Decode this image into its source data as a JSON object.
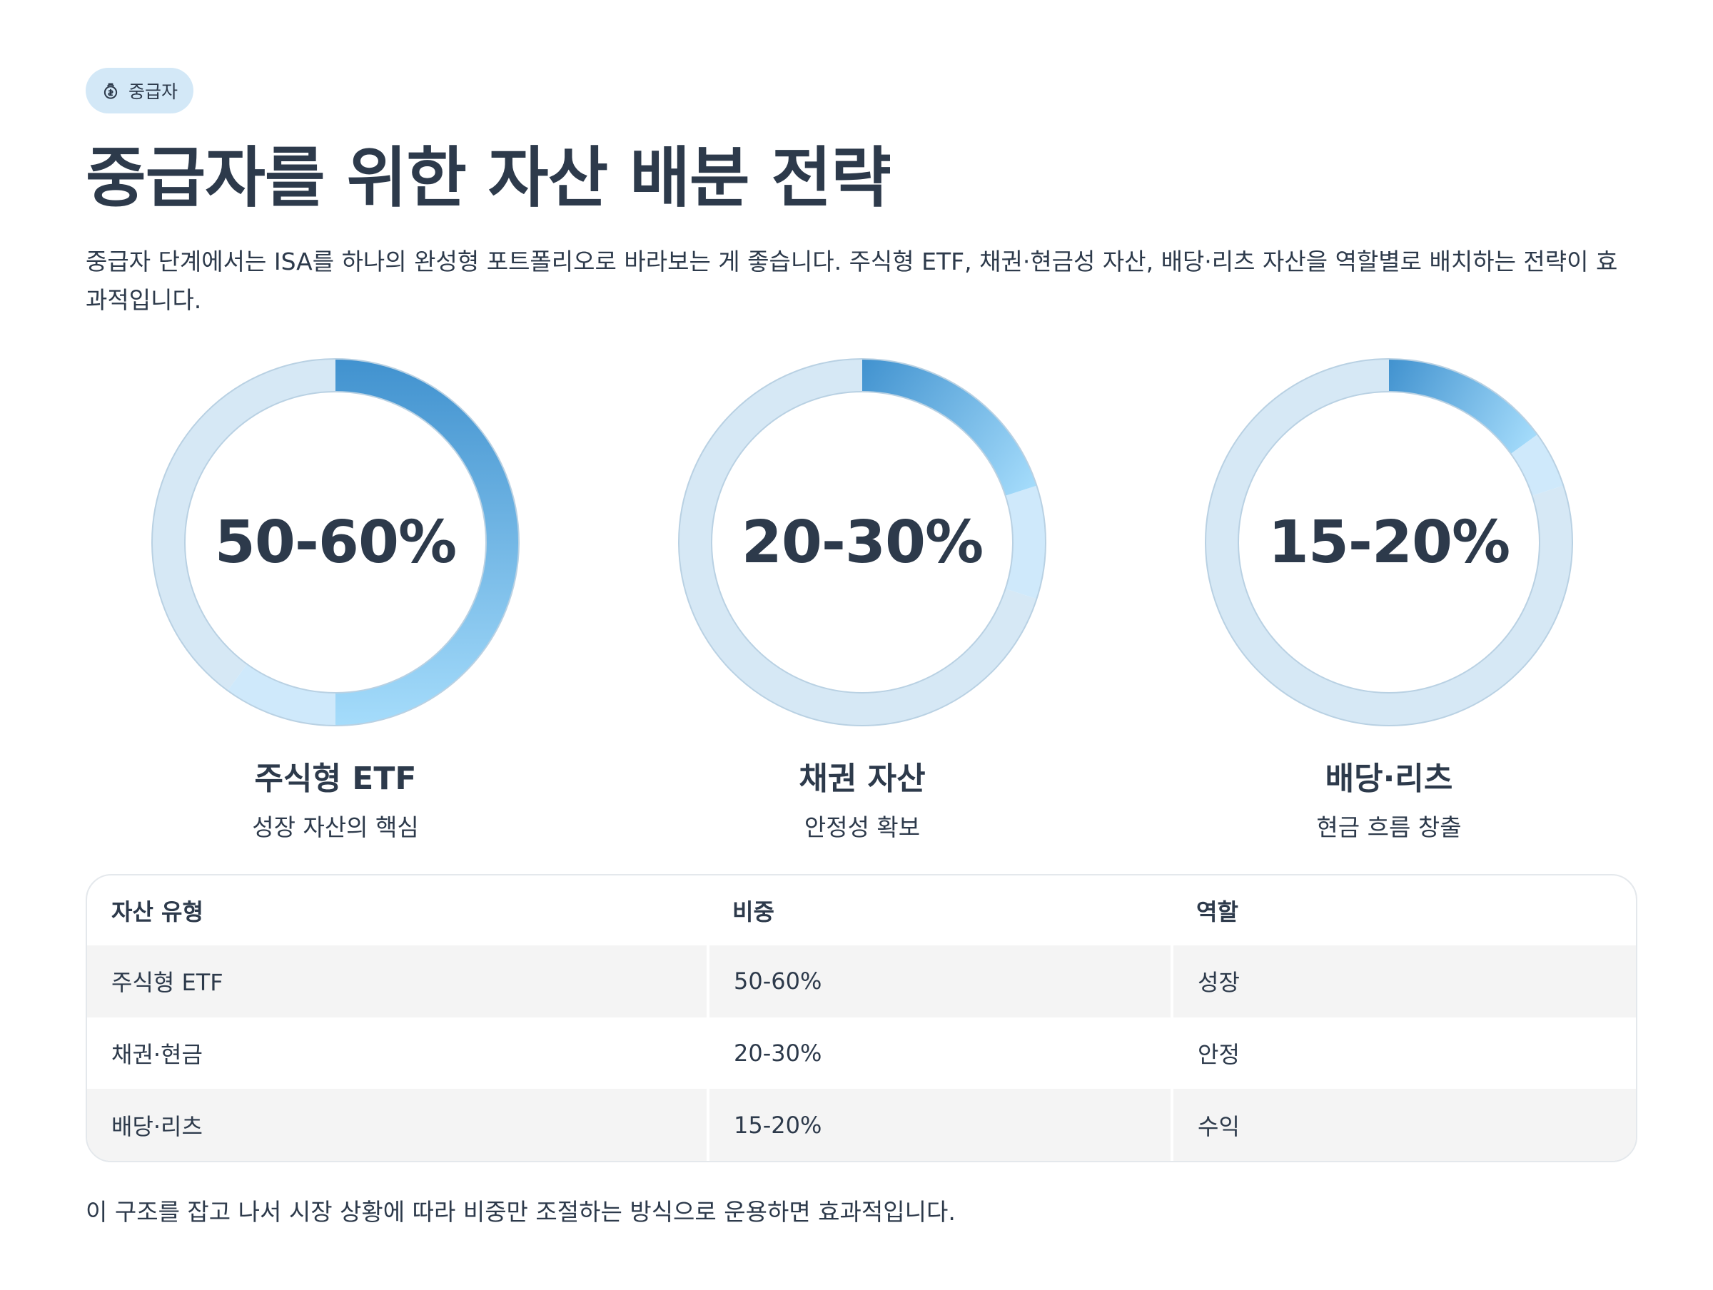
{
  "badge": {
    "icon": "piggy-bank-icon",
    "label": "중급자"
  },
  "title": "중급자를 위한 자산 배분 전략",
  "intro": "중급자 단계에서는 ISA를 하나의 완성형 포트폴리오로 바라보는 게 좋습니다. 주식형 ETF, 채권·현금성 자산, 배당·리츠 자산을 역할별로 배치하는 전략이 효과적입니다.",
  "colors": {
    "text": "#2d3a4b",
    "ring_background": "#d6e8f5",
    "ring_upper_range": "#cfe9fb",
    "arc_start": "#4192cf",
    "arc_end": "#a5dcfb"
  },
  "chart_data": [
    {
      "type": "pie",
      "label": "50-60%",
      "range": [
        50,
        60
      ],
      "title": "주식형 ETF",
      "subtitle": "성장 자산의 핵심"
    },
    {
      "type": "pie",
      "label": "20-30%",
      "range": [
        20,
        30
      ],
      "title": "채권 자산",
      "subtitle": "안정성 확보"
    },
    {
      "type": "pie",
      "label": "15-20%",
      "range": [
        15,
        20
      ],
      "title": "배당·리츠",
      "subtitle": "현금 흐름 창출"
    }
  ],
  "table": {
    "headers": [
      "자산 유형",
      "비중",
      "역할"
    ],
    "rows": [
      [
        "주식형 ETF",
        "50-60%",
        "성장"
      ],
      [
        "채권·현금",
        "20-30%",
        "안정"
      ],
      [
        "배당·리츠",
        "15-20%",
        "수익"
      ]
    ]
  },
  "footer": "이 구조를 잡고 나서 시장 상황에 따라 비중만 조절하는 방식으로 운용하면 효과적입니다."
}
